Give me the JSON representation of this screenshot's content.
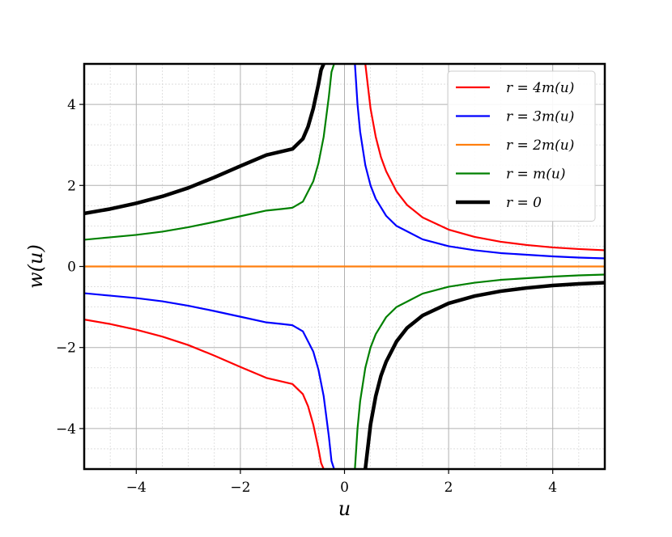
{
  "chart_data": {
    "type": "line",
    "xlabel": "u",
    "ylabel": "w(u)",
    "xlim": [
      -5,
      5
    ],
    "ylim": [
      -5,
      5
    ],
    "xticks": [
      -4,
      -2,
      0,
      2,
      4
    ],
    "yticks": [
      -4,
      -2,
      0,
      2,
      4
    ],
    "xtick_labels": [
      "−4",
      "−2",
      "0",
      "2",
      "4"
    ],
    "ytick_labels": [
      "−4",
      "−2",
      "0",
      "2",
      "4"
    ],
    "grid": "major and minor",
    "legend_position": "top-right",
    "series": [
      {
        "name": "r = 4m(u)",
        "color": "#ff0000",
        "branches": [
          {
            "x": [
              -5,
              -4.5,
              -4,
              -3.5,
              -3,
              -2.5,
              -2,
              -1.5,
              -1.2,
              -1,
              -0.8,
              -0.7,
              -0.6,
              -0.5,
              -0.45,
              -0.4
            ],
            "y": [
              -1.31,
              -1.42,
              -1.56,
              -1.73,
              -1.94,
              -2.2,
              -2.48,
              -2.75,
              -2.84,
              -2.9,
              -3.15,
              -3.45,
              -3.9,
              -4.5,
              -4.85,
              -5.0
            ]
          },
          {
            "x": [
              0.4,
              0.5,
              0.6,
              0.7,
              0.8,
              1,
              1.2,
              1.5,
              2,
              2.5,
              3,
              3.5,
              4,
              4.5,
              5
            ],
            "y": [
              5.0,
              3.9,
              3.2,
              2.7,
              2.35,
              1.85,
              1.52,
              1.21,
              0.91,
              0.73,
              0.61,
              0.53,
              0.47,
              0.43,
              0.4
            ]
          }
        ]
      },
      {
        "name": "r = 3m(u)",
        "color": "#0000ff",
        "branches": [
          {
            "x": [
              -5,
              -4.5,
              -4,
              -3.5,
              -3,
              -2.5,
              -2,
              -1.5,
              -1.2,
              -1,
              -0.8,
              -0.6,
              -0.5,
              -0.4,
              -0.3,
              -0.25,
              -0.2
            ],
            "y": [
              -0.66,
              -0.72,
              -0.78,
              -0.86,
              -0.97,
              -1.1,
              -1.24,
              -1.38,
              -1.42,
              -1.45,
              -1.6,
              -2.1,
              -2.55,
              -3.2,
              -4.2,
              -4.8,
              -5.0
            ]
          },
          {
            "x": [
              0.2,
              0.25,
              0.3,
              0.4,
              0.5,
              0.6,
              0.8,
              1,
              1.5,
              2,
              2.5,
              3,
              3.5,
              4,
              4.5,
              5
            ],
            "y": [
              5.0,
              4.0,
              3.33,
              2.5,
              2.0,
              1.67,
              1.25,
              1.0,
              0.67,
              0.5,
              0.4,
              0.33,
              0.29,
              0.25,
              0.22,
              0.2
            ]
          }
        ]
      },
      {
        "name": "r = 2m(u)",
        "color": "#ff7f0e",
        "branches": [
          {
            "x": [
              -5,
              5
            ],
            "y": [
              0,
              0
            ]
          }
        ]
      },
      {
        "name": "r = m(u)",
        "color": "#008000",
        "branches": [
          {
            "x": [
              -5,
              -4.5,
              -4,
              -3.5,
              -3,
              -2.5,
              -2,
              -1.5,
              -1.2,
              -1,
              -0.8,
              -0.6,
              -0.5,
              -0.4,
              -0.3,
              -0.25,
              -0.2
            ],
            "y": [
              0.66,
              0.72,
              0.78,
              0.86,
              0.97,
              1.1,
              1.24,
              1.38,
              1.42,
              1.45,
              1.6,
              2.1,
              2.55,
              3.2,
              4.2,
              4.8,
              5.0
            ]
          },
          {
            "x": [
              0.2,
              0.25,
              0.3,
              0.4,
              0.5,
              0.6,
              0.8,
              1,
              1.5,
              2,
              2.5,
              3,
              3.5,
              4,
              4.5,
              5
            ],
            "y": [
              -5.0,
              -4.0,
              -3.33,
              -2.5,
              -2.0,
              -1.67,
              -1.25,
              -1.0,
              -0.67,
              -0.5,
              -0.4,
              -0.33,
              -0.29,
              -0.25,
              -0.22,
              -0.2
            ]
          }
        ]
      },
      {
        "name": "r = 0",
        "color": "#000000",
        "thick": true,
        "branches": [
          {
            "x": [
              -5,
              -4.5,
              -4,
              -3.5,
              -3,
              -2.5,
              -2,
              -1.5,
              -1.2,
              -1,
              -0.8,
              -0.7,
              -0.6,
              -0.5,
              -0.45,
              -0.4
            ],
            "y": [
              1.31,
              1.42,
              1.56,
              1.73,
              1.94,
              2.2,
              2.48,
              2.75,
              2.84,
              2.9,
              3.15,
              3.45,
              3.9,
              4.5,
              4.85,
              5.0
            ]
          },
          {
            "x": [
              0.4,
              0.5,
              0.6,
              0.7,
              0.8,
              1,
              1.2,
              1.5,
              2,
              2.5,
              3,
              3.5,
              4,
              4.5,
              5
            ],
            "y": [
              -5.0,
              -3.9,
              -3.2,
              -2.7,
              -2.35,
              -1.85,
              -1.52,
              -1.21,
              -0.91,
              -0.73,
              -0.61,
              -0.53,
              -0.47,
              -0.43,
              -0.4
            ]
          }
        ]
      }
    ]
  }
}
